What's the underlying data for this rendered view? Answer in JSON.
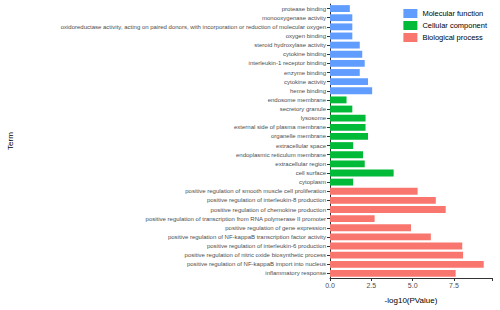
{
  "chart_data": {
    "type": "bar",
    "orientation": "horizontal",
    "x_label": "-log10(PValue)",
    "y_label": "Term",
    "categories": [
      "protease binding",
      "monooxygenase activity",
      "oxidoreductase activity, acting on paired donors, with incorporation or reduction of molecular oxygen",
      "oxygen binding",
      "steroid hydroxylase activity",
      "cytokine binding",
      "interleukin-1 receptor binding",
      "enzyme binding",
      "cytokine activity",
      "heme binding",
      "endosome membrane",
      "secretory granule",
      "lysosome",
      "external side of plasma membrane",
      "organelle membrane",
      "extracellular space",
      "endoplasmic reticulum membrane",
      "extracellular region",
      "cell surface",
      "cytoplasm",
      "positive regulation of smooth muscle cell proliferation",
      "positive regulation of interleukin-8 production",
      "positive regulation of chemokine production",
      "positive regulation of transcription from RNA polymerase II promoter",
      "positive regulation of gene expression",
      "positive regulation of NF-kappaB transcription factor activity",
      "positive regulation of interleukin-6 production",
      "positive regulation of nitric oxide biosynthetic process",
      "positive regulation of NF-kappaB import into nucleus",
      "inflammatory response"
    ],
    "series": [
      {
        "name": "Molecular function",
        "color": "#619cff",
        "values": [
          1.2,
          1.35,
          1.35,
          1.35,
          1.8,
          1.95,
          2.1,
          1.8,
          2.3,
          2.55,
          null,
          null,
          null,
          null,
          null,
          null,
          null,
          null,
          null,
          null,
          null,
          null,
          null,
          null,
          null,
          null,
          null,
          null,
          null,
          null
        ]
      },
      {
        "name": "Cellular component",
        "color": "#00ba38",
        "values": [
          null,
          null,
          null,
          null,
          null,
          null,
          null,
          null,
          null,
          null,
          1.0,
          1.35,
          2.15,
          2.15,
          2.3,
          1.4,
          2.0,
          2.1,
          3.85,
          1.4,
          null,
          null,
          null,
          null,
          null,
          null,
          null,
          null,
          null,
          null
        ]
      },
      {
        "name": "Biological process",
        "color": "#f8766d",
        "values": [
          null,
          null,
          null,
          null,
          null,
          null,
          null,
          null,
          null,
          null,
          null,
          null,
          null,
          null,
          null,
          null,
          null,
          null,
          null,
          null,
          5.3,
          6.4,
          7.0,
          2.7,
          4.9,
          6.1,
          8.0,
          8.05,
          9.3,
          7.6
        ]
      }
    ],
    "xlim": [
      0,
      9.8
    ],
    "xticks": [
      {
        "value": 0,
        "label": "0.0"
      },
      {
        "value": 2.5,
        "label": "2.5"
      },
      {
        "value": 5,
        "label": "5.0"
      },
      {
        "value": 7.5,
        "label": "7.5"
      }
    ],
    "legend": "top-right",
    "grid": false
  }
}
